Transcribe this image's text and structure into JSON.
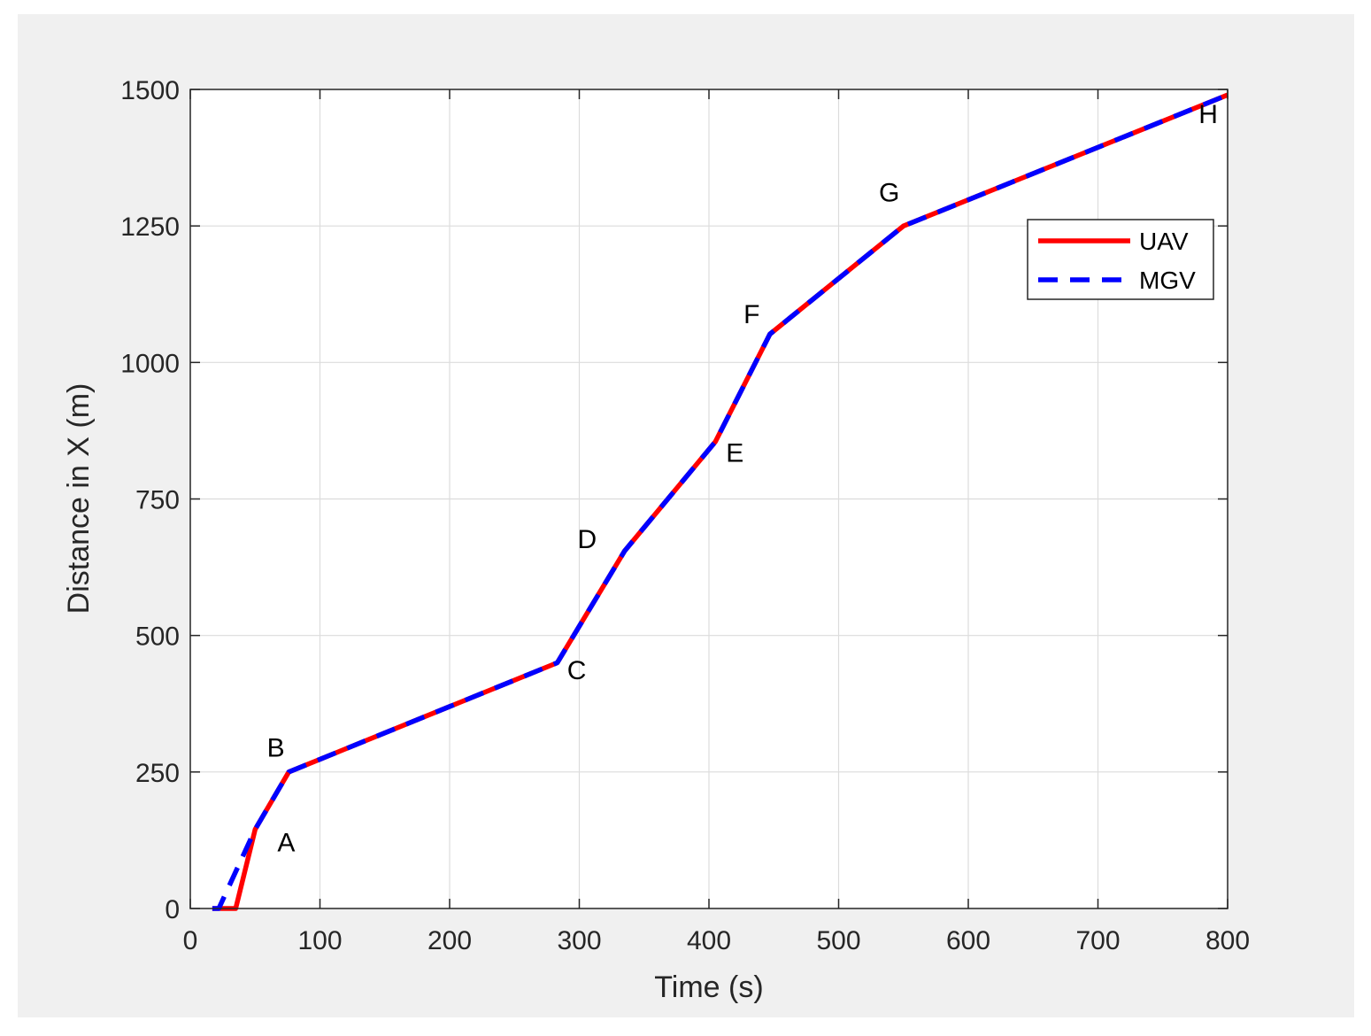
{
  "chart_data": {
    "type": "line",
    "xlabel": "Time (s)",
    "ylabel": "Distance in X (m)",
    "xlim": [
      0,
      800
    ],
    "ylim": [
      0,
      1500
    ],
    "xticks": [
      0,
      100,
      200,
      300,
      400,
      500,
      600,
      700,
      800
    ],
    "yticks": [
      0,
      250,
      500,
      750,
      1000,
      1250,
      1500
    ],
    "grid": true,
    "legend": {
      "placement": "top-right"
    },
    "series": [
      {
        "name": "UAV",
        "color": "#ff0000",
        "style": "solid",
        "points": [
          [
            17,
            0
          ],
          [
            35,
            0
          ],
          [
            50,
            145
          ],
          [
            76,
            250
          ],
          [
            283,
            450
          ],
          [
            335,
            655
          ],
          [
            405,
            855
          ],
          [
            447,
            1052
          ],
          [
            550,
            1250
          ],
          [
            800,
            1490
          ]
        ]
      },
      {
        "name": "MGV",
        "color": "#0000ff",
        "style": "dashed",
        "points": [
          [
            17,
            0
          ],
          [
            22,
            0
          ],
          [
            50,
            145
          ],
          [
            76,
            250
          ],
          [
            283,
            450
          ],
          [
            335,
            655
          ],
          [
            405,
            855
          ],
          [
            447,
            1052
          ],
          [
            550,
            1250
          ],
          [
            800,
            1490
          ]
        ]
      }
    ],
    "annotations": [
      {
        "text": "A",
        "x": 74,
        "y": 105
      },
      {
        "text": "B",
        "x": 66,
        "y": 278
      },
      {
        "text": "C",
        "x": 298,
        "y": 420
      },
      {
        "text": "D",
        "x": 306,
        "y": 660
      },
      {
        "text": "E",
        "x": 420,
        "y": 818
      },
      {
        "text": "F",
        "x": 433,
        "y": 1072
      },
      {
        "text": "G",
        "x": 539,
        "y": 1295
      },
      {
        "text": "H",
        "x": 785,
        "y": 1438
      }
    ]
  }
}
